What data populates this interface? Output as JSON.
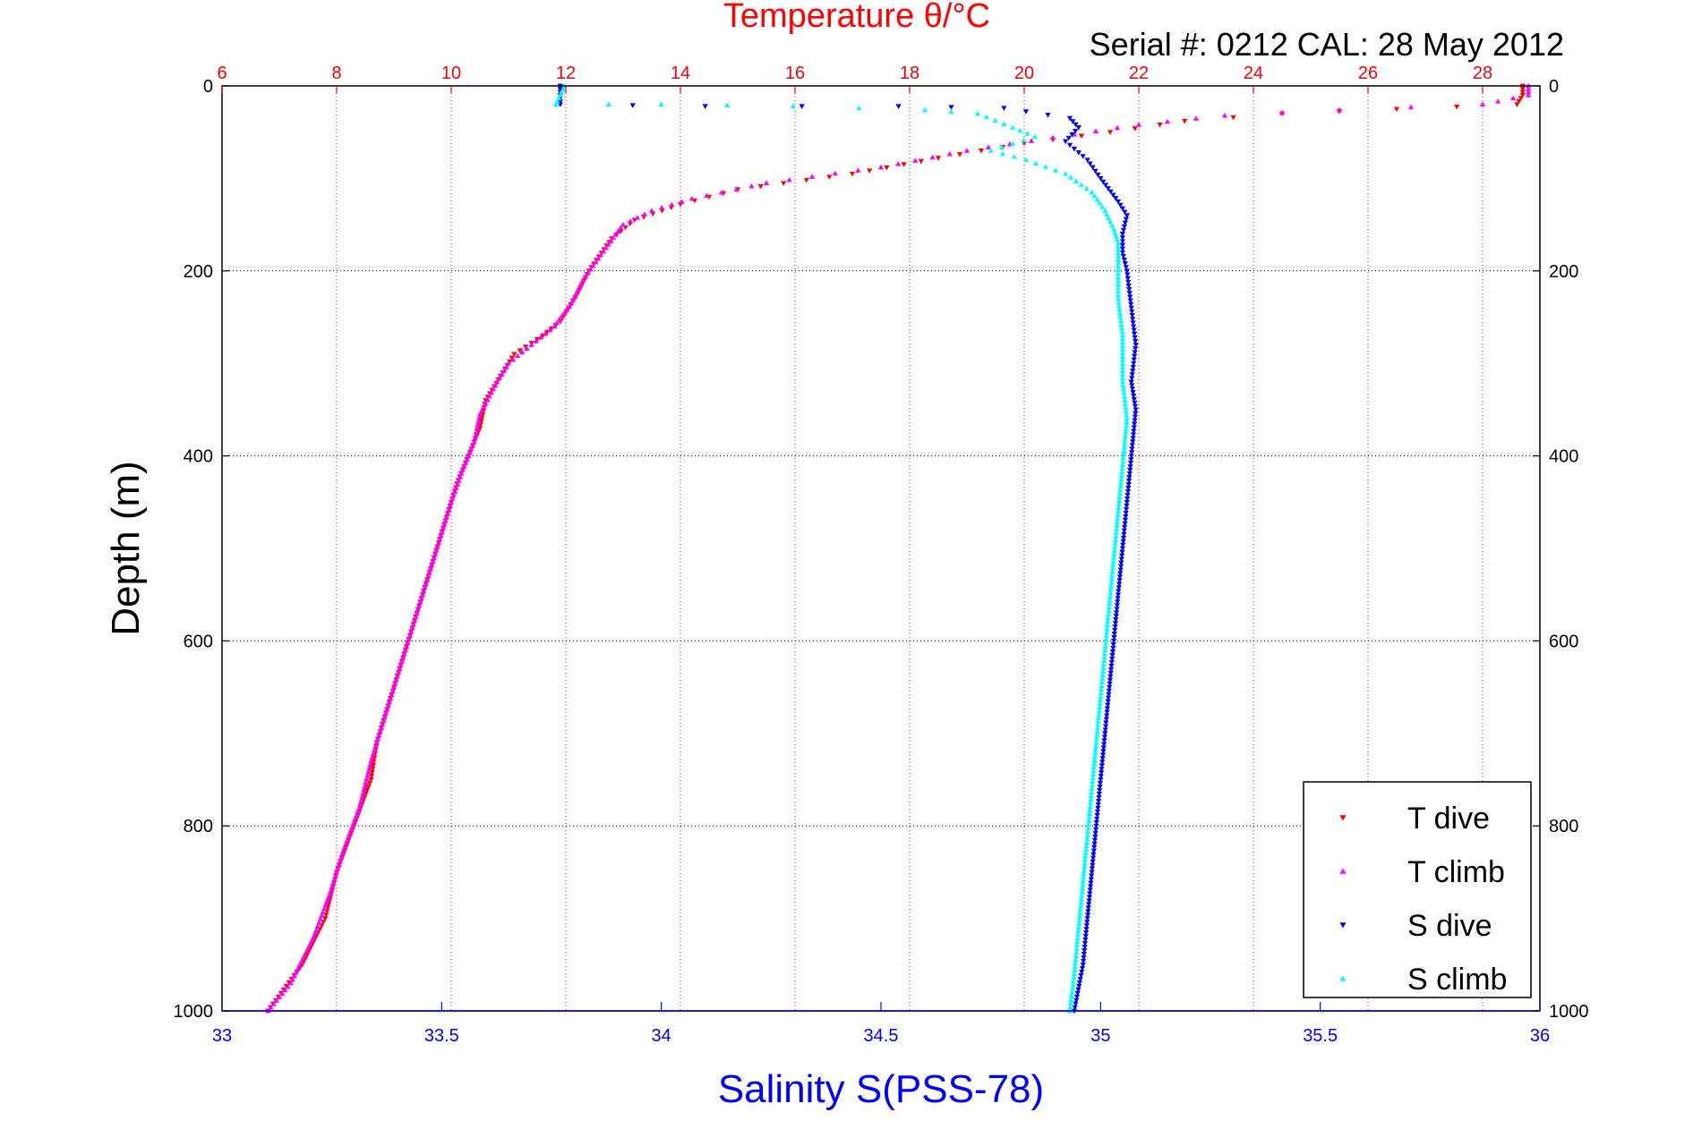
{
  "chart_data": {
    "type": "scatter",
    "title": "Temperature θ/°C",
    "subtitle": "Serial #: 0212  CAL: 28 May 2012",
    "ylabel": "Depth (m)",
    "xlabel": "Salinity S(PSS-78)",
    "ylim": [
      0,
      1000
    ],
    "y_reversed": true,
    "x_top": {
      "label": "Temperature θ/°C",
      "lim": [
        6,
        29
      ],
      "ticks": [
        6,
        8,
        10,
        12,
        14,
        16,
        18,
        20,
        22,
        24,
        26,
        28
      ],
      "color": "#ff0000"
    },
    "x_bottom": {
      "label": "Salinity S(PSS-78)",
      "lim": [
        33,
        36
      ],
      "ticks": [
        33,
        33.5,
        34,
        34.5,
        35,
        35.5,
        36
      ],
      "color": "#0000ff"
    },
    "y_ticks": [
      0,
      200,
      400,
      600,
      800,
      1000
    ],
    "grid": true,
    "legend": "bottom-right",
    "series": [
      {
        "name": "T dive",
        "axis": "top",
        "color": "#ff0000",
        "marker": "triangle-down",
        "points": [
          [
            28.7,
            0
          ],
          [
            28.7,
            10
          ],
          [
            28.6,
            20
          ],
          [
            26.5,
            25
          ],
          [
            24.5,
            30
          ],
          [
            22.8,
            38
          ],
          [
            21.5,
            50
          ],
          [
            20.0,
            62
          ],
          [
            18.5,
            78
          ],
          [
            17.0,
            95
          ],
          [
            15.0,
            112
          ],
          [
            14.0,
            128
          ],
          [
            13.2,
            145
          ],
          [
            12.8,
            165
          ],
          [
            12.4,
            200
          ],
          [
            12.2,
            225
          ],
          [
            11.9,
            255
          ],
          [
            11.6,
            270
          ],
          [
            11.1,
            290
          ],
          [
            10.9,
            310
          ],
          [
            10.6,
            340
          ],
          [
            10.5,
            370
          ],
          [
            10.3,
            400
          ],
          [
            10.1,
            430
          ],
          [
            9.9,
            470
          ],
          [
            9.7,
            510
          ],
          [
            9.5,
            550
          ],
          [
            9.3,
            590
          ],
          [
            9.1,
            630
          ],
          [
            8.9,
            670
          ],
          [
            8.7,
            710
          ],
          [
            8.6,
            750
          ],
          [
            8.3,
            800
          ],
          [
            8.0,
            850
          ],
          [
            7.8,
            900
          ],
          [
            7.4,
            950
          ],
          [
            6.8,
            1000
          ]
        ]
      },
      {
        "name": "T climb",
        "axis": "top",
        "color": "#ff00ff",
        "marker": "triangle-up",
        "points": [
          [
            28.8,
            0
          ],
          [
            28.8,
            10
          ],
          [
            28.0,
            20
          ],
          [
            25.5,
            26
          ],
          [
            23.5,
            32
          ],
          [
            22.0,
            42
          ],
          [
            20.5,
            56
          ],
          [
            19.0,
            70
          ],
          [
            17.5,
            88
          ],
          [
            15.5,
            105
          ],
          [
            14.2,
            122
          ],
          [
            13.5,
            135
          ],
          [
            13.0,
            150
          ],
          [
            12.7,
            175
          ],
          [
            12.3,
            210
          ],
          [
            12.1,
            235
          ],
          [
            11.8,
            260
          ],
          [
            11.4,
            280
          ],
          [
            11.0,
            300
          ],
          [
            10.8,
            320
          ],
          [
            10.5,
            355
          ],
          [
            10.4,
            385
          ],
          [
            10.2,
            415
          ],
          [
            10.0,
            450
          ],
          [
            9.8,
            490
          ],
          [
            9.6,
            530
          ],
          [
            9.4,
            570
          ],
          [
            9.2,
            610
          ],
          [
            9.0,
            650
          ],
          [
            8.8,
            690
          ],
          [
            8.6,
            730
          ],
          [
            8.4,
            780
          ],
          [
            8.1,
            830
          ],
          [
            7.9,
            870
          ],
          [
            7.6,
            920
          ],
          [
            7.2,
            970
          ],
          [
            6.8,
            1000
          ]
        ]
      },
      {
        "name": "S dive",
        "axis": "bottom",
        "color": "#0000ff",
        "marker": "triangle-down",
        "points": [
          [
            33.77,
            0
          ],
          [
            33.77,
            10
          ],
          [
            33.77,
            20
          ],
          [
            34.1,
            22
          ],
          [
            34.54,
            22
          ],
          [
            34.78,
            24
          ],
          [
            34.93,
            35
          ],
          [
            34.95,
            45
          ],
          [
            34.92,
            60
          ],
          [
            34.97,
            80
          ],
          [
            35.0,
            100
          ],
          [
            35.04,
            125
          ],
          [
            35.06,
            140
          ],
          [
            35.05,
            160
          ],
          [
            35.05,
            180
          ],
          [
            35.06,
            200
          ],
          [
            35.07,
            240
          ],
          [
            35.08,
            280
          ],
          [
            35.07,
            320
          ],
          [
            35.08,
            350
          ],
          [
            35.07,
            400
          ],
          [
            35.06,
            450
          ],
          [
            35.05,
            500
          ],
          [
            35.04,
            550
          ],
          [
            35.03,
            600
          ],
          [
            35.02,
            650
          ],
          [
            35.01,
            700
          ],
          [
            35.0,
            750
          ],
          [
            34.99,
            800
          ],
          [
            34.98,
            850
          ],
          [
            34.97,
            900
          ],
          [
            34.96,
            950
          ],
          [
            34.94,
            1000
          ]
        ]
      },
      {
        "name": "S climb",
        "axis": "bottom",
        "color": "#00ffff",
        "marker": "triangle-up",
        "points": [
          [
            33.78,
            0
          ],
          [
            33.77,
            10
          ],
          [
            33.76,
            20
          ],
          [
            34.0,
            20
          ],
          [
            34.3,
            22
          ],
          [
            34.6,
            26
          ],
          [
            34.72,
            30
          ],
          [
            34.8,
            45
          ],
          [
            34.85,
            55
          ],
          [
            34.75,
            70
          ],
          [
            34.83,
            80
          ],
          [
            34.92,
            95
          ],
          [
            34.98,
            115
          ],
          [
            35.01,
            135
          ],
          [
            35.03,
            155
          ],
          [
            35.04,
            170
          ],
          [
            35.04,
            195
          ],
          [
            35.04,
            230
          ],
          [
            35.05,
            270
          ],
          [
            35.05,
            320
          ],
          [
            35.06,
            360
          ],
          [
            35.05,
            410
          ],
          [
            35.04,
            460
          ],
          [
            35.03,
            510
          ],
          [
            35.02,
            560
          ],
          [
            35.01,
            610
          ],
          [
            35.0,
            660
          ],
          [
            34.99,
            710
          ],
          [
            34.98,
            760
          ],
          [
            34.97,
            810
          ],
          [
            34.96,
            860
          ],
          [
            34.95,
            910
          ],
          [
            34.94,
            960
          ],
          [
            34.93,
            1000
          ]
        ]
      }
    ]
  }
}
